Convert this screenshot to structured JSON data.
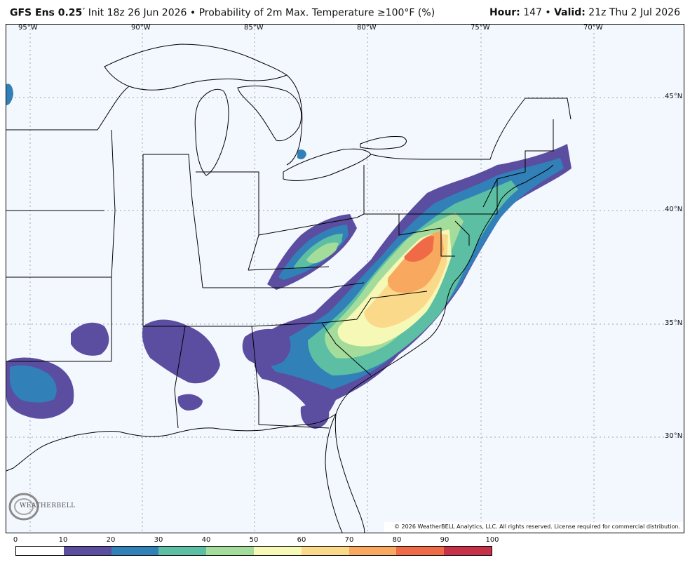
{
  "header": {
    "model": "GFS Ens 0.25",
    "degree": "°",
    "init": "Init 18z 26 Jun 2026",
    "bullet": "•",
    "product": "Probability of 2m Max. Temperature",
    "threshold": "≥100°F (%)",
    "hour_label": "Hour:",
    "hour_value": "147",
    "valid_label": "Valid:",
    "valid_value": "21z Thu 2 Jul 2026"
  },
  "longitude_labels": [
    "95°W",
    "90°W",
    "85°W",
    "80°W",
    "75°W",
    "70°W"
  ],
  "latitude_labels": [
    "45°N",
    "40°N",
    "35°N",
    "30°N"
  ],
  "copyright": "© 2026 WeatherBELL Analytics, LLC. All rights reserved. License required for commercial distribution.",
  "logo_text": "WEATHERBELL",
  "colorbar": {
    "ticks": [
      "0",
      "10",
      "20",
      "30",
      "40",
      "50",
      "60",
      "70",
      "80",
      "90",
      "100"
    ],
    "colors": [
      "#ffffff",
      "#5b4ea0",
      "#3280b8",
      "#5cbfa3",
      "#a4dc9b",
      "#f6f8b6",
      "#fbd98a",
      "#f9a85f",
      "#ef6a46",
      "#c63149"
    ]
  }
}
